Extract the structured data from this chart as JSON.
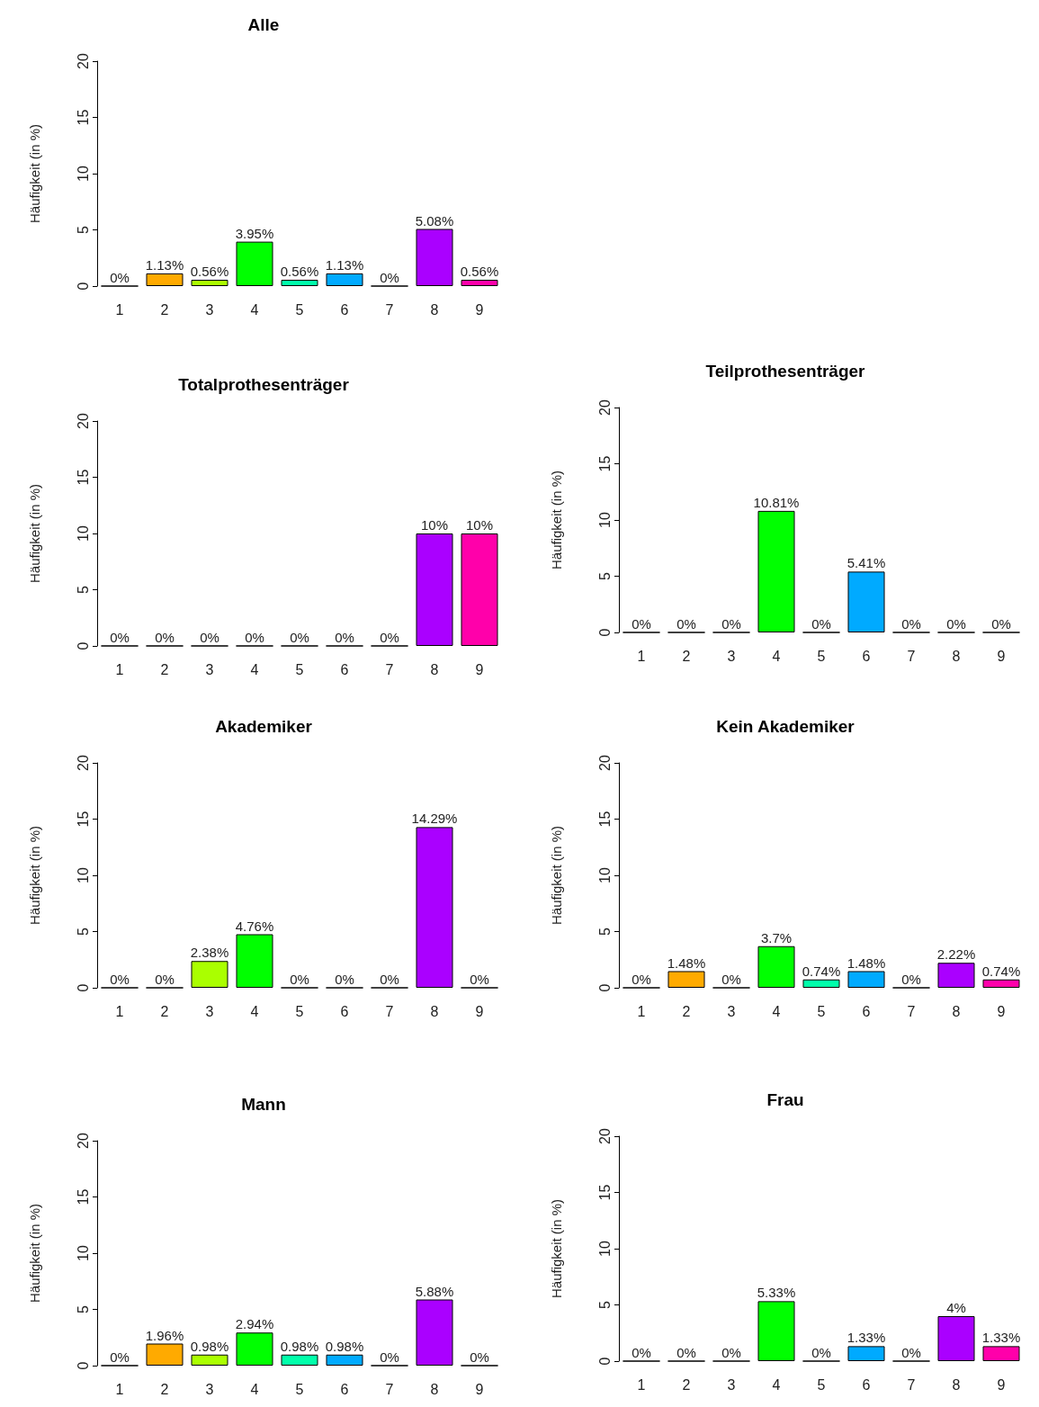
{
  "chart_data": [
    {
      "type": "bar",
      "title": "Alle",
      "ylabel": "Häufigkeit (in %)",
      "categories": [
        "1",
        "2",
        "3",
        "4",
        "5",
        "6",
        "7",
        "8",
        "9"
      ],
      "values": [
        0,
        1.13,
        0.56,
        3.95,
        0.56,
        1.13,
        0,
        5.08,
        0.56
      ],
      "value_labels": [
        "0%",
        "1.13%",
        "0.56%",
        "3.95%",
        "0.56%",
        "1.13%",
        "0%",
        "5.08%",
        "0.56%"
      ],
      "colors": [
        "#000000",
        "#ffaa00",
        "#aaff00",
        "#00ff00",
        "#00ffaa",
        "#00aaff",
        "#000000",
        "#aa00ff",
        "#ff00aa"
      ],
      "ylim": [
        0,
        20
      ],
      "yticks": [
        0,
        5,
        10,
        15,
        20
      ]
    },
    {
      "type": "bar",
      "title": "Totalprothesenträger",
      "ylabel": "Häufigkeit (in %)",
      "categories": [
        "1",
        "2",
        "3",
        "4",
        "5",
        "6",
        "7",
        "8",
        "9"
      ],
      "values": [
        0,
        0,
        0,
        0,
        0,
        0,
        0,
        10,
        10
      ],
      "value_labels": [
        "0%",
        "0%",
        "0%",
        "0%",
        "0%",
        "0%",
        "0%",
        "10%",
        "10%"
      ],
      "colors": [
        "#000000",
        "#000000",
        "#000000",
        "#000000",
        "#000000",
        "#000000",
        "#000000",
        "#aa00ff",
        "#ff00aa"
      ],
      "ylim": [
        0,
        20
      ],
      "yticks": [
        0,
        5,
        10,
        15,
        20
      ]
    },
    {
      "type": "bar",
      "title": "Teilprothesenträger",
      "ylabel": "Häufigkeit (in %)",
      "categories": [
        "1",
        "2",
        "3",
        "4",
        "5",
        "6",
        "7",
        "8",
        "9"
      ],
      "values": [
        0,
        0,
        0,
        10.81,
        0,
        5.41,
        0,
        0,
        0
      ],
      "value_labels": [
        "0%",
        "0%",
        "0%",
        "10.81%",
        "0%",
        "5.41%",
        "0%",
        "0%",
        "0%"
      ],
      "colors": [
        "#000000",
        "#000000",
        "#000000",
        "#00ff00",
        "#000000",
        "#00aaff",
        "#000000",
        "#000000",
        "#000000"
      ],
      "ylim": [
        0,
        20
      ],
      "yticks": [
        0,
        5,
        10,
        15,
        20
      ]
    },
    {
      "type": "bar",
      "title": "Akademiker",
      "ylabel": "Häufigkeit (in %)",
      "categories": [
        "1",
        "2",
        "3",
        "4",
        "5",
        "6",
        "7",
        "8",
        "9"
      ],
      "values": [
        0,
        0,
        2.38,
        4.76,
        0,
        0,
        0,
        14.29,
        0
      ],
      "value_labels": [
        "0%",
        "0%",
        "2.38%",
        "4.76%",
        "0%",
        "0%",
        "0%",
        "14.29%",
        "0%"
      ],
      "colors": [
        "#000000",
        "#000000",
        "#aaff00",
        "#00ff00",
        "#000000",
        "#000000",
        "#000000",
        "#aa00ff",
        "#000000"
      ],
      "ylim": [
        0,
        20
      ],
      "yticks": [
        0,
        5,
        10,
        15,
        20
      ]
    },
    {
      "type": "bar",
      "title": "Kein Akademiker",
      "ylabel": "Häufigkeit (in %)",
      "categories": [
        "1",
        "2",
        "3",
        "4",
        "5",
        "6",
        "7",
        "8",
        "9"
      ],
      "values": [
        0,
        1.48,
        0,
        3.7,
        0.74,
        1.48,
        0,
        2.22,
        0.74
      ],
      "value_labels": [
        "0%",
        "1.48%",
        "0%",
        "3.7%",
        "0.74%",
        "1.48%",
        "0%",
        "2.22%",
        "0.74%"
      ],
      "colors": [
        "#000000",
        "#ffaa00",
        "#000000",
        "#00ff00",
        "#00ffaa",
        "#00aaff",
        "#000000",
        "#aa00ff",
        "#ff00aa"
      ],
      "ylim": [
        0,
        20
      ],
      "yticks": [
        0,
        5,
        10,
        15,
        20
      ]
    },
    {
      "type": "bar",
      "title": "Mann",
      "ylabel": "Häufigkeit (in %)",
      "categories": [
        "1",
        "2",
        "3",
        "4",
        "5",
        "6",
        "7",
        "8",
        "9"
      ],
      "values": [
        0,
        1.96,
        0.98,
        2.94,
        0.98,
        0.98,
        0,
        5.88,
        0
      ],
      "value_labels": [
        "0%",
        "1.96%",
        "0.98%",
        "2.94%",
        "0.98%",
        "0.98%",
        "0%",
        "5.88%",
        "0%"
      ],
      "colors": [
        "#000000",
        "#ffaa00",
        "#aaff00",
        "#00ff00",
        "#00ffaa",
        "#00aaff",
        "#000000",
        "#aa00ff",
        "#000000"
      ],
      "ylim": [
        0,
        20
      ],
      "yticks": [
        0,
        5,
        10,
        15,
        20
      ]
    },
    {
      "type": "bar",
      "title": "Frau",
      "ylabel": "Häufigkeit (in %)",
      "categories": [
        "1",
        "2",
        "3",
        "4",
        "5",
        "6",
        "7",
        "8",
        "9"
      ],
      "values": [
        0,
        0,
        0,
        5.33,
        0,
        1.33,
        0,
        4,
        1.33
      ],
      "value_labels": [
        "0%",
        "0%",
        "0%",
        "5.33%",
        "0%",
        "1.33%",
        "0%",
        "4%",
        "1.33%"
      ],
      "colors": [
        "#000000",
        "#000000",
        "#000000",
        "#00ff00",
        "#000000",
        "#00aaff",
        "#000000",
        "#aa00ff",
        "#ff00aa"
      ],
      "ylim": [
        0,
        20
      ],
      "yticks": [
        0,
        5,
        10,
        15,
        20
      ]
    }
  ]
}
